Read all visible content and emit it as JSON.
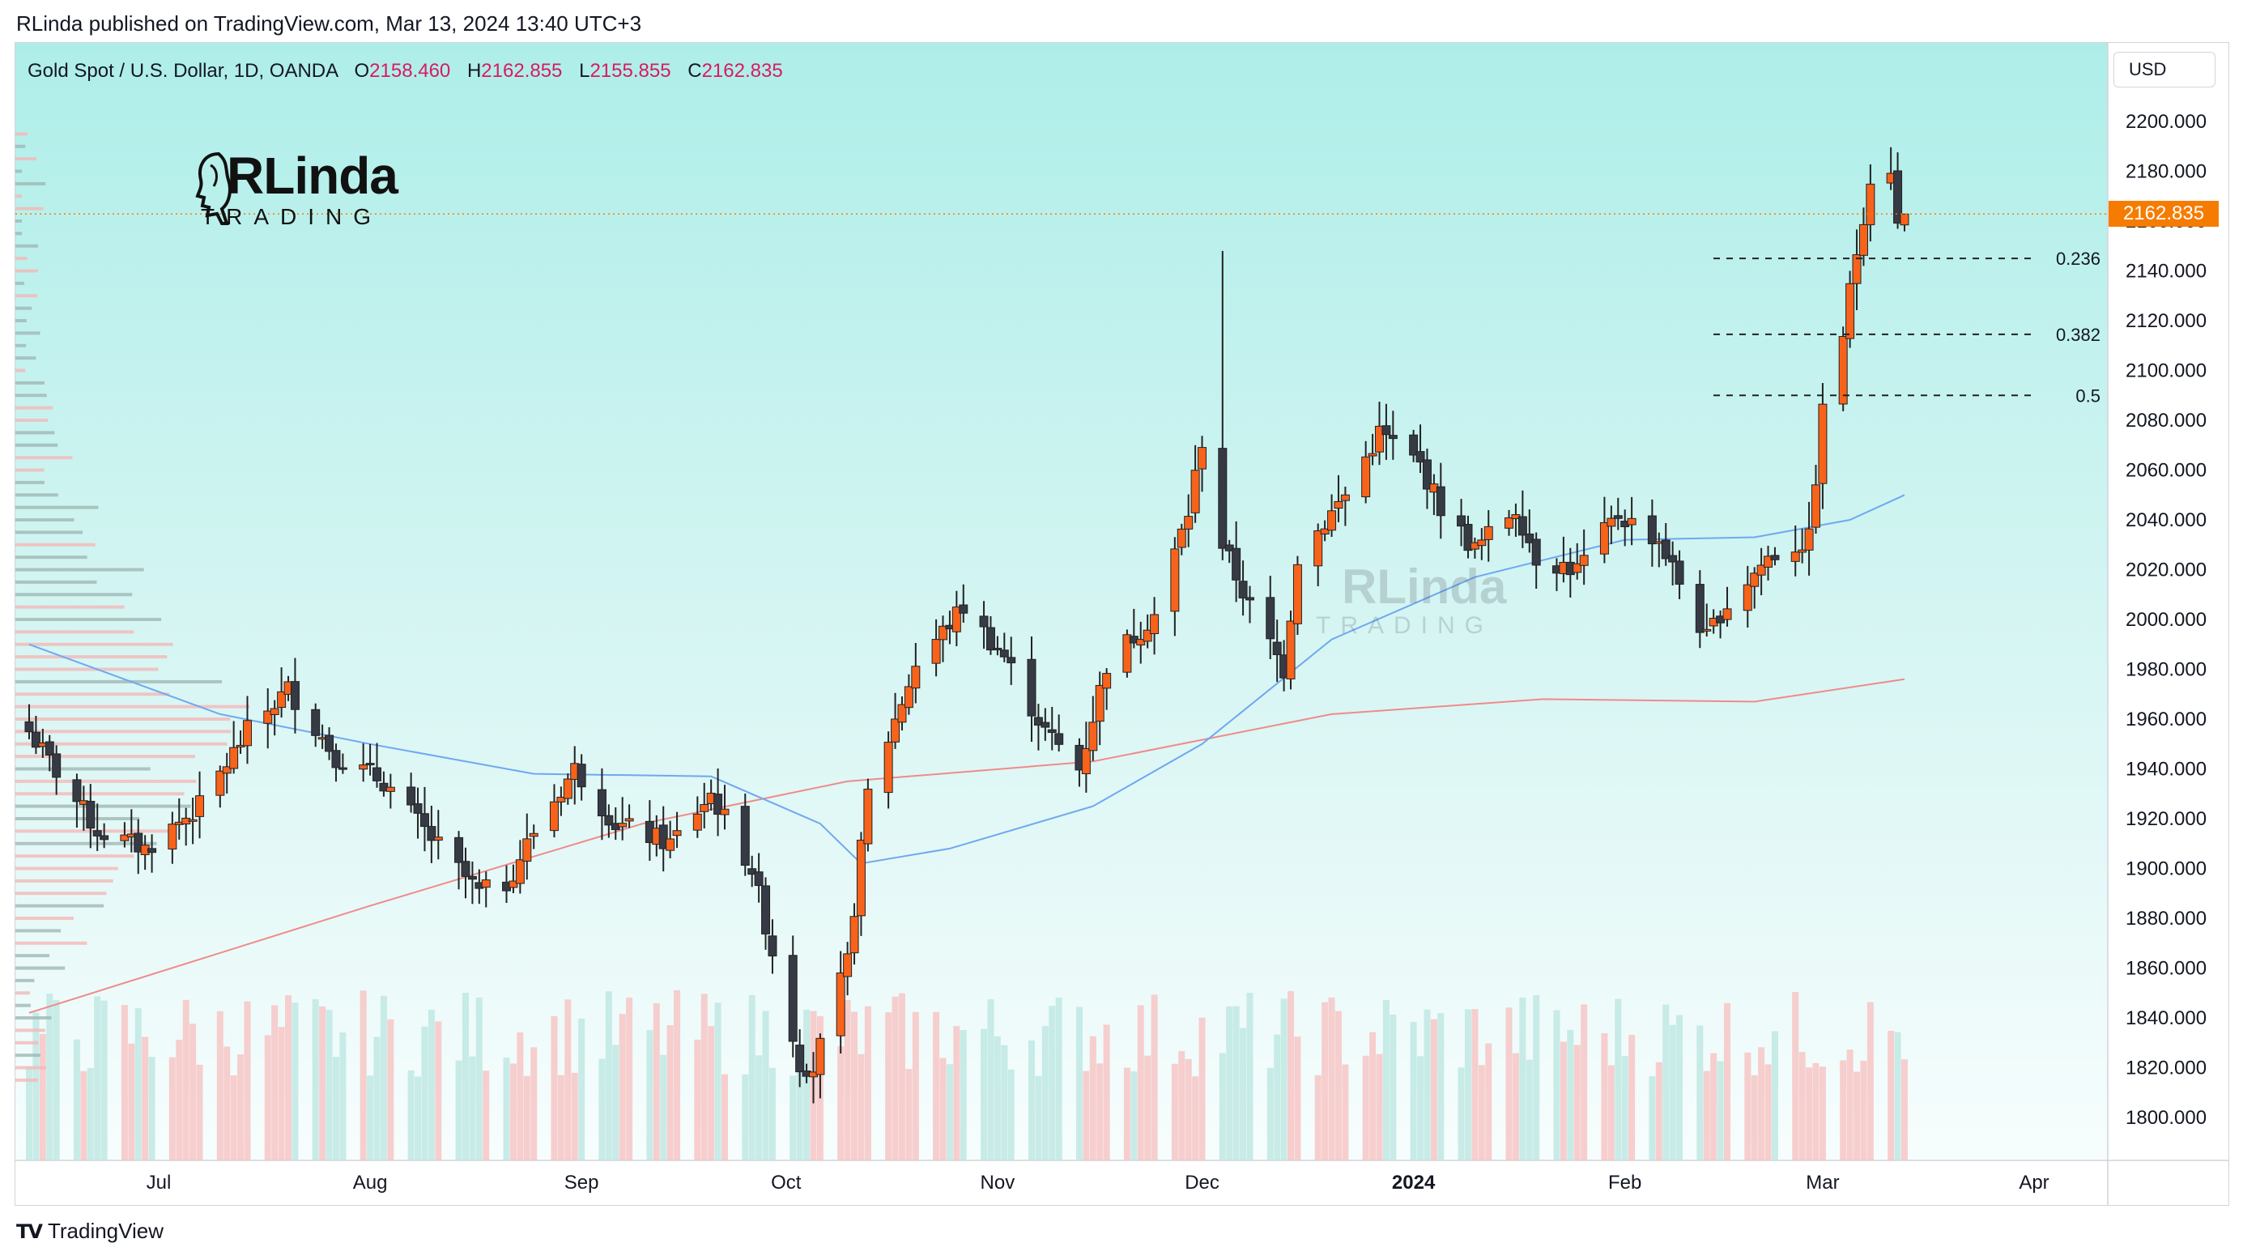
{
  "header": {
    "text": "RLinda published on TradingView.com, Mar 13, 2024 13:40 UTC+3"
  },
  "symbol": {
    "name": "Gold Spot / U.S. Dollar, 1D, OANDA",
    "open_label": "O",
    "open": "2158.460",
    "high_label": "H",
    "high": "2162.855",
    "low_label": "L",
    "low": "2155.855",
    "close_label": "C",
    "close": "2162.835"
  },
  "currency": "USD",
  "last_price": "2162.835",
  "logo": {
    "word": "RLinda",
    "sub": "TRADING"
  },
  "footer": {
    "icon": "TV",
    "brand": "TradingView"
  },
  "colors": {
    "up": "#f7631b",
    "down": "#363a45",
    "ma_fast": "#6fa8f0",
    "ma_slow": "#f08a8a",
    "volume_up": "#f7c6c6",
    "volume_down": "#bfe7e3",
    "last_price": "#f57c00"
  },
  "chart_data": {
    "type": "candlestick",
    "y_axis": {
      "min": 1800,
      "max": 2200,
      "ticks": [
        "2200.000",
        "2180.000",
        "2160.000",
        "2140.000",
        "2120.000",
        "2100.000",
        "2080.000",
        "2060.000",
        "2040.000",
        "2020.000",
        "2000.000",
        "1980.000",
        "1960.000",
        "1940.000",
        "1920.000",
        "1900.000",
        "1880.000",
        "1860.000",
        "1840.000",
        "1820.000",
        "1800.000"
      ]
    },
    "x_axis": {
      "labels": [
        {
          "label": "Jul",
          "date": "2023-07-01"
        },
        {
          "label": "Aug",
          "date": "2023-08-01"
        },
        {
          "label": "Sep",
          "date": "2023-09-01"
        },
        {
          "label": "Oct",
          "date": "2023-10-01"
        },
        {
          "label": "Nov",
          "date": "2023-11-01"
        },
        {
          "label": "Dec",
          "date": "2023-12-01"
        },
        {
          "label": "2024",
          "date": "2024-01-01"
        },
        {
          "label": "Feb",
          "date": "2024-02-01"
        },
        {
          "label": "Mar",
          "date": "2024-03-01"
        },
        {
          "label": "Apr",
          "date": "2024-04-01"
        }
      ]
    },
    "fibonacci": [
      {
        "level": "0.236",
        "price": 2145
      },
      {
        "level": "0.382",
        "price": 2114.5
      },
      {
        "level": "0.5",
        "price": 2090
      }
    ],
    "last_price": 2162.835,
    "keypoints": [
      {
        "date": "2023-06-12",
        "close": 1955
      },
      {
        "date": "2023-06-22",
        "close": 1915
      },
      {
        "date": "2023-06-29",
        "close": 1908
      },
      {
        "date": "2023-07-07",
        "close": 1925
      },
      {
        "date": "2023-07-14",
        "close": 1955
      },
      {
        "date": "2023-07-20",
        "close": 1972
      },
      {
        "date": "2023-07-27",
        "close": 1945
      },
      {
        "date": "2023-08-03",
        "close": 1935
      },
      {
        "date": "2023-08-10",
        "close": 1912
      },
      {
        "date": "2023-08-17",
        "close": 1890
      },
      {
        "date": "2023-08-21",
        "close": 1894
      },
      {
        "date": "2023-08-25",
        "close": 1915
      },
      {
        "date": "2023-08-31",
        "close": 1940
      },
      {
        "date": "2023-09-06",
        "close": 1918
      },
      {
        "date": "2023-09-14",
        "close": 1910
      },
      {
        "date": "2023-09-20",
        "close": 1930
      },
      {
        "date": "2023-09-26",
        "close": 1900
      },
      {
        "date": "2023-10-03",
        "close": 1822
      },
      {
        "date": "2023-10-05",
        "close": 1820
      },
      {
        "date": "2023-10-10",
        "close": 1862
      },
      {
        "date": "2023-10-13",
        "close": 1930
      },
      {
        "date": "2023-10-20",
        "close": 1982
      },
      {
        "date": "2023-10-27",
        "close": 2005
      },
      {
        "date": "2023-11-02",
        "close": 1985
      },
      {
        "date": "2023-11-08",
        "close": 1955
      },
      {
        "date": "2023-11-13",
        "close": 1940
      },
      {
        "date": "2023-11-17",
        "close": 1982
      },
      {
        "date": "2023-11-24",
        "close": 2002
      },
      {
        "date": "2023-11-29",
        "close": 2043
      },
      {
        "date": "2023-12-01",
        "close": 2072
      },
      {
        "date": "2023-12-04",
        "close": 2030
      },
      {
        "date": "2023-12-08",
        "close": 2005
      },
      {
        "date": "2023-12-13",
        "close": 1980
      },
      {
        "date": "2023-12-15",
        "close": 2025
      },
      {
        "date": "2023-12-22",
        "close": 2050
      },
      {
        "date": "2023-12-27",
        "close": 2075
      },
      {
        "date": "2024-01-02",
        "close": 2062
      },
      {
        "date": "2024-01-05",
        "close": 2045
      },
      {
        "date": "2024-01-10",
        "close": 2028
      },
      {
        "date": "2024-01-16",
        "close": 2045
      },
      {
        "date": "2024-01-19",
        "close": 2025
      },
      {
        "date": "2024-01-25",
        "close": 2020
      },
      {
        "date": "2024-01-31",
        "close": 2042
      },
      {
        "date": "2024-02-06",
        "close": 2032
      },
      {
        "date": "2024-02-13",
        "close": 1992
      },
      {
        "date": "2024-02-15",
        "close": 2003
      },
      {
        "date": "2024-02-22",
        "close": 2025
      },
      {
        "date": "2024-02-28",
        "close": 2032
      },
      {
        "date": "2024-03-01",
        "close": 2083
      },
      {
        "date": "2024-03-04",
        "close": 2115
      },
      {
        "date": "2024-03-06",
        "close": 2148
      },
      {
        "date": "2024-03-08",
        "close": 2178
      },
      {
        "date": "2024-03-11",
        "close": 2182
      },
      {
        "date": "2024-03-12",
        "close": 2158
      },
      {
        "date": "2024-03-13",
        "close": 2162.835
      }
    ],
    "ma_fast_keypoints": [
      {
        "date": "2023-06-12",
        "value": 1990
      },
      {
        "date": "2023-07-10",
        "value": 1962
      },
      {
        "date": "2023-08-01",
        "value": 1950
      },
      {
        "date": "2023-08-25",
        "value": 1938
      },
      {
        "date": "2023-09-20",
        "value": 1937
      },
      {
        "date": "2023-10-06",
        "value": 1918
      },
      {
        "date": "2023-10-12",
        "value": 1902
      },
      {
        "date": "2023-10-25",
        "value": 1908
      },
      {
        "date": "2023-11-15",
        "value": 1925
      },
      {
        "date": "2023-12-01",
        "value": 1950
      },
      {
        "date": "2023-12-20",
        "value": 1992
      },
      {
        "date": "2024-01-10",
        "value": 2017
      },
      {
        "date": "2024-02-01",
        "value": 2032
      },
      {
        "date": "2024-02-20",
        "value": 2033
      },
      {
        "date": "2024-03-05",
        "value": 2040
      },
      {
        "date": "2024-03-13",
        "value": 2050
      }
    ],
    "ma_slow_keypoints": [
      {
        "date": "2023-06-12",
        "value": 1842
      },
      {
        "date": "2023-08-01",
        "value": 1885
      },
      {
        "date": "2023-09-10",
        "value": 1918
      },
      {
        "date": "2023-10-10",
        "value": 1935
      },
      {
        "date": "2023-11-15",
        "value": 1943
      },
      {
        "date": "2023-12-20",
        "value": 1962
      },
      {
        "date": "2024-01-20",
        "value": 1968
      },
      {
        "date": "2024-02-20",
        "value": 1967
      },
      {
        "date": "2024-03-13",
        "value": 1976
      }
    ]
  }
}
